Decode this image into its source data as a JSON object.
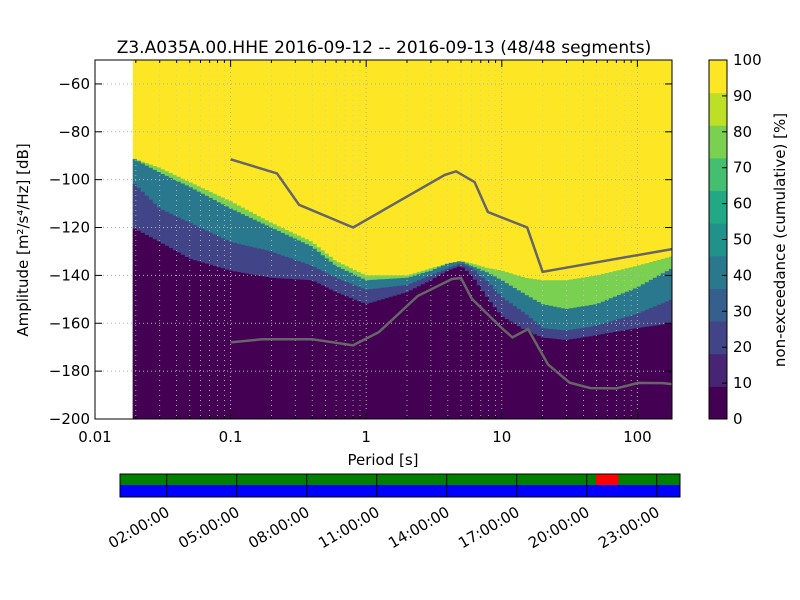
{
  "chart_data": {
    "type": "heatmap",
    "title": "Z3.A035A.00.HHE   2016-09-12 -- 2016-09-13  (48/48 segments)",
    "xlabel": "Period [s]",
    "ylabel": "Amplitude [m²/s⁴/Hz] [dB]",
    "xscale": "log",
    "xlim": [
      0.01,
      180
    ],
    "ylim": [
      -200,
      -50
    ],
    "xticks": [
      {
        "value": 0.01,
        "label": "0.01"
      },
      {
        "value": 0.1,
        "label": "0.1"
      },
      {
        "value": 1,
        "label": "1"
      },
      {
        "value": 10,
        "label": "10"
      },
      {
        "value": 100,
        "label": "100"
      }
    ],
    "yticks": [
      {
        "value": -60,
        "label": "−60"
      },
      {
        "value": -80,
        "label": "−80"
      },
      {
        "value": -100,
        "label": "−100"
      },
      {
        "value": -120,
        "label": "−120"
      },
      {
        "value": -140,
        "label": "−140"
      },
      {
        "value": -160,
        "label": "−160"
      },
      {
        "value": -180,
        "label": "−180"
      },
      {
        "value": -200,
        "label": "−200"
      }
    ],
    "grid": true,
    "data_period_start": 0.019,
    "colorbar": {
      "label": "non-exceedance (cumulative) [%]",
      "range": [
        0,
        100
      ],
      "ticks": [
        "0",
        "10",
        "20",
        "30",
        "40",
        "50",
        "60",
        "70",
        "80",
        "90",
        "100"
      ],
      "colors": [
        "#440154",
        "#482475",
        "#414487",
        "#355f8d",
        "#2a788e",
        "#21918c",
        "#22a884",
        "#44bf70",
        "#7ad151",
        "#bddf26",
        "#fde725"
      ]
    },
    "noise_models": {
      "color": "#666666",
      "high": {
        "period": [
          0.1,
          0.22,
          0.32,
          0.8,
          3.8,
          4.6,
          6.3,
          7.9,
          15.4,
          20,
          180
        ],
        "db": [
          -91.5,
          -97.4,
          -110.5,
          -120,
          -98,
          -96.5,
          -101,
          -113.5,
          -120,
          -138.5,
          -129
        ]
      },
      "low": {
        "period": [
          0.1,
          0.17,
          0.4,
          0.8,
          1.24,
          2.4,
          4.3,
          5,
          6,
          10,
          12,
          15.6,
          21.9,
          31.6,
          45,
          70,
          101,
          154,
          180
        ],
        "db": [
          -168,
          -166.7,
          -166.7,
          -169.2,
          -163.7,
          -148.6,
          -141.5,
          -141.1,
          -149.7,
          -162,
          -165.9,
          -162.4,
          -177.2,
          -184.8,
          -187.1,
          -187.2,
          -184.9,
          -185,
          -185.4
        ]
      }
    },
    "percentile_bands": {
      "period": [
        0.019,
        0.03,
        0.05,
        0.1,
        0.2,
        0.4,
        0.6,
        1,
        2,
        3,
        4,
        5,
        6,
        8,
        10,
        15,
        20,
        30,
        50,
        100,
        180
      ],
      "p10": [
        -120,
        -126,
        -133,
        -138,
        -141,
        -142,
        -147,
        -152,
        -147,
        -142,
        -138,
        -136,
        -140,
        -150,
        -157,
        -163,
        -166,
        -167,
        -165,
        -162,
        -160
      ],
      "p50": [
        -101,
        -112,
        -118,
        -126,
        -130,
        -136,
        -141,
        -146,
        -144,
        -140,
        -137,
        -135,
        -137,
        -143,
        -149,
        -156,
        -162,
        -163,
        -161,
        -156,
        -150
      ],
      "p90": [
        -91,
        -97,
        -103,
        -112,
        -120,
        -128,
        -136,
        -142,
        -141,
        -138,
        -135,
        -134,
        -136,
        -139,
        -142,
        -148,
        -152,
        -154,
        -152,
        -145,
        -137
      ],
      "p95": [
        -91,
        -95,
        -101,
        -109,
        -118,
        -126,
        -134,
        -140,
        -140,
        -137,
        -135,
        -134,
        -135,
        -137,
        -138,
        -141,
        -142,
        -142,
        -140,
        -136,
        -132
      ]
    },
    "segments_timeline": {
      "tick_labels": [
        "02:00:00",
        "05:00:00",
        "08:00:00",
        "11:00:00",
        "14:00:00",
        "17:00:00",
        "20:00:00",
        "23:00:00"
      ],
      "top_color": "#007f00",
      "bottom_color": "#0000ff",
      "gap_color": "#ff0000",
      "gap_fraction": [
        0.85,
        0.89
      ]
    }
  }
}
